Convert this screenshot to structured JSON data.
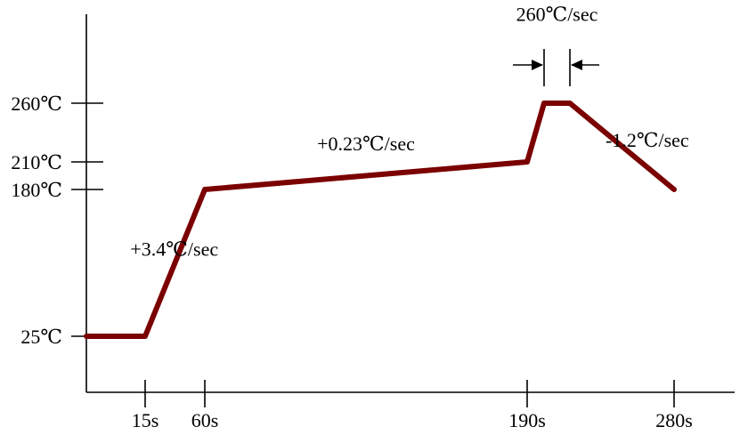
{
  "chart_data": {
    "type": "line",
    "title": "",
    "xlabel": "",
    "ylabel": "",
    "x_ticks": [
      {
        "value": 15,
        "label": "15s"
      },
      {
        "value": 60,
        "label": "60s"
      },
      {
        "value": 190,
        "label": "190s"
      },
      {
        "value": 280,
        "label": "280s"
      }
    ],
    "y_ticks": [
      {
        "value": 25,
        "label": "25℃"
      },
      {
        "value": 180,
        "label": "180℃"
      },
      {
        "value": 210,
        "label": "210℃"
      },
      {
        "value": 260,
        "label": "260℃"
      }
    ],
    "series": [
      {
        "color": "#7b0000",
        "points": [
          {
            "x": 0,
            "y": 25
          },
          {
            "x": 15,
            "y": 25
          },
          {
            "x": 60,
            "y": 180
          },
          {
            "x": 190,
            "y": 210
          },
          {
            "x": 200,
            "y": 260
          },
          {
            "x": 214,
            "y": 260
          },
          {
            "x": 280,
            "y": 180
          }
        ]
      }
    ],
    "annotations": [
      {
        "text": "+3.4℃/sec",
        "x": 37,
        "y": 110
      },
      {
        "text": "+0.23℃/sec",
        "x": 125,
        "y": 220
      },
      {
        "text": "260℃/sec",
        "x": 207,
        "y": 330
      },
      {
        "text": "-1.2℃/sec",
        "x": 263,
        "y": 223
      }
    ],
    "grid": false
  }
}
